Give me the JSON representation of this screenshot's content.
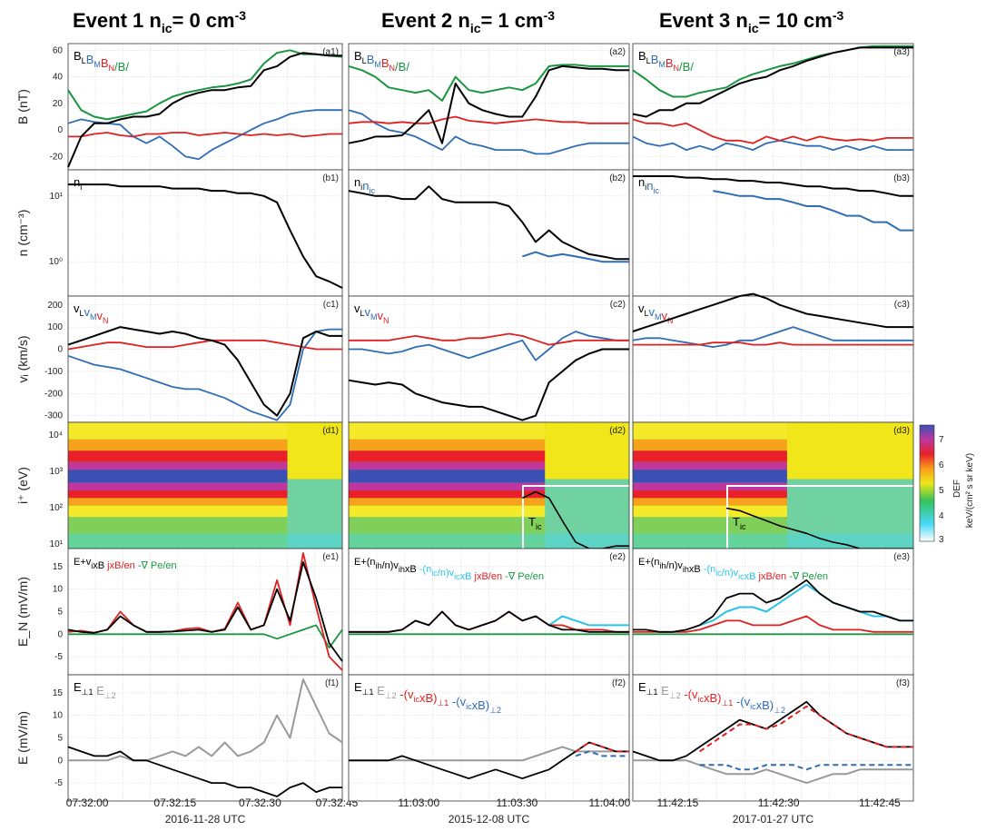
{
  "events": [
    {
      "title": "Event 1  n",
      "sub": "ic",
      "eq": "= 0 cm",
      "sup": "-3",
      "date_label": "2016-11-28 UTC",
      "xticks": [
        "07:32:00",
        "07:32:15",
        "07:32:30",
        "07:32:45"
      ]
    },
    {
      "title": "Event 2  n",
      "sub": "ic",
      "eq": "= 1 cm",
      "sup": "-3",
      "date_label": "2015-12-08 UTC",
      "xticks": [
        "11:03:00",
        "11:03:30",
        "11:04:00"
      ]
    },
    {
      "title": "Event 3  n",
      "sub": "ic",
      "eq": "= 10 cm",
      "sup": "-3",
      "date_label": "2017-01-27 UTC",
      "xticks": [
        "11:42:15",
        "11:42:30",
        "11:42:45"
      ]
    }
  ],
  "rows": [
    {
      "key": "a",
      "ylabel": "B (nT)",
      "yticks": [
        "60",
        "40",
        "20",
        "0",
        "-20"
      ]
    },
    {
      "key": "b",
      "ylabel": "n (cm⁻³)",
      "yticks": [
        "10¹",
        "10⁰"
      ]
    },
    {
      "key": "c",
      "ylabel": "vᵢ (km/s)",
      "yticks": [
        "200",
        "100",
        "0",
        "-100",
        "-200",
        "-300"
      ]
    },
    {
      "key": "d",
      "ylabel": "i⁺ (eV)",
      "yticks": [
        "10⁴",
        "10³",
        "10²",
        "10¹"
      ]
    },
    {
      "key": "e",
      "ylabel": "E_N (mV/m)",
      "yticks": [
        "15",
        "10",
        "5",
        "0",
        "-5"
      ]
    },
    {
      "key": "f",
      "ylabel": "E (mV/m)",
      "yticks": [
        "15",
        "10",
        "5",
        "0",
        "-5"
      ]
    }
  ],
  "panel_tags": [
    "(a1)",
    "(a2)",
    "(a3)",
    "(b1)",
    "(b2)",
    "(b3)",
    "(c1)",
    "(c2)",
    "(c3)",
    "(d1)",
    "(d2)",
    "(d3)",
    "(e1)",
    "(e2)",
    "(e3)",
    "(f1)",
    "(f2)",
    "(f3)"
  ],
  "legends": {
    "a": [
      {
        "t": "B",
        "s": "L",
        "c": "#000000"
      },
      {
        "t": "B",
        "s": "M",
        "c": "#2e6db4"
      },
      {
        "t": "B",
        "s": "N",
        "c": "#e02020"
      },
      {
        "t": "/B/",
        "s": "",
        "c": "#1a9641"
      }
    ],
    "b1": [
      {
        "t": "n",
        "s": "i",
        "c": "#000000"
      }
    ],
    "b23": [
      {
        "t": "n",
        "s": "i",
        "c": "#000000"
      },
      {
        "t": "n",
        "s": "ic",
        "c": "#2e6db4"
      }
    ],
    "c": [
      {
        "t": "v",
        "s": "L",
        "c": "#000000"
      },
      {
        "t": "v",
        "s": "M",
        "c": "#2e6db4"
      },
      {
        "t": "v",
        "s": "N",
        "c": "#e02020"
      }
    ],
    "e1": [
      {
        "t": "E+v",
        "s": "i",
        "c": "#000000"
      },
      {
        "t": "xB ",
        "s": "",
        "c": "#000000"
      },
      {
        "t": "jxB/en",
        "s": "",
        "c": "#e02020"
      },
      {
        "t": " -∇ Pe/en",
        "s": "",
        "c": "#1a9641"
      }
    ],
    "e23": [
      {
        "t": "E+(n",
        "s": "ih",
        "c": "#000000"
      },
      {
        "t": "/n)v",
        "s": "ih",
        "c": "#000000"
      },
      {
        "t": "xB ",
        "s": "",
        "c": "#000000"
      },
      {
        "t": "-(n",
        "s": "ic",
        "c": "#2bc3e8"
      },
      {
        "t": "/n)v",
        "s": "ic",
        "c": "#2bc3e8"
      },
      {
        "t": "xB ",
        "s": "",
        "c": "#2bc3e8"
      },
      {
        "t": "jxB/en",
        "s": "",
        "c": "#e02020"
      },
      {
        "t": " -∇ Pe/en",
        "s": "",
        "c": "#1a9641"
      }
    ],
    "f1": [
      {
        "t": "E",
        "s": "⊥1",
        "c": "#000000"
      },
      {
        "t": " E",
        "s": "⊥2",
        "c": "#999999"
      }
    ],
    "f23": [
      {
        "t": "E",
        "s": "⊥1",
        "c": "#000000"
      },
      {
        "t": " E",
        "s": "⊥2",
        "c": "#999999"
      },
      {
        "t": " -(v",
        "s": "ic",
        "c": "#e02020"
      },
      {
        "t": "xB)",
        "s": "⊥1",
        "c": "#e02020"
      },
      {
        "t": " -(v",
        "s": "ic",
        "c": "#2e6db4"
      },
      {
        "t": "xB)",
        "s": "⊥2",
        "c": "#2e6db4"
      }
    ]
  },
  "tic_label": "T",
  "tic_sub": "ic",
  "colorbar": {
    "ticks": [
      "7",
      "6",
      "5",
      "4",
      "3"
    ],
    "label": "DEF",
    "unit": "keV/(cm² s sr keV)"
  },
  "colors": {
    "L": "#000000",
    "M": "#2e6db4",
    "N": "#e02020",
    "B": "#1a9641",
    "cyan": "#2bc3e8",
    "gray": "#999999"
  },
  "chart_data": {
    "type": "line",
    "series_notes": "Approximate traces read from the figure",
    "a1": {
      "BL": [
        -28,
        -5,
        5,
        5,
        8,
        10,
        10,
        12,
        20,
        25,
        28,
        30,
        30,
        32,
        33,
        45,
        48,
        55,
        58,
        57,
        56,
        56
      ],
      "BM": [
        5,
        8,
        6,
        5,
        4,
        -5,
        -10,
        -5,
        -12,
        -20,
        -22,
        -15,
        -10,
        -5,
        0,
        5,
        8,
        12,
        14,
        15,
        15,
        15
      ],
      "BN": [
        -5,
        -5,
        -3,
        -2,
        -4,
        -5,
        -3,
        -3,
        -2,
        -2,
        -4,
        -3,
        -2,
        -3,
        -4,
        -3,
        -4,
        -3,
        -5,
        -4,
        -3,
        -3
      ],
      "Bt": [
        30,
        15,
        10,
        8,
        10,
        12,
        14,
        20,
        25,
        28,
        30,
        32,
        33,
        35,
        38,
        50,
        58,
        60,
        57,
        57,
        56,
        55
      ]
    },
    "a2": {
      "BL": [
        -10,
        -8,
        -5,
        -5,
        -4,
        5,
        15,
        -10,
        35,
        20,
        15,
        12,
        10,
        10,
        25,
        45,
        48,
        47,
        46,
        46,
        45,
        45
      ],
      "BM": [
        15,
        12,
        5,
        0,
        -2,
        -5,
        -10,
        -15,
        -5,
        -10,
        -12,
        -15,
        -15,
        -15,
        -18,
        -18,
        -15,
        -12,
        -10,
        -10,
        -10,
        -10
      ],
      "BN": [
        5,
        6,
        6,
        5,
        6,
        5,
        5,
        8,
        10,
        7,
        6,
        5,
        6,
        7,
        8,
        7,
        6,
        6,
        5,
        5,
        5,
        5
      ],
      "Bt": [
        48,
        45,
        40,
        32,
        30,
        28,
        30,
        22,
        40,
        30,
        28,
        30,
        32,
        30,
        35,
        48,
        49,
        49,
        48,
        48,
        48,
        48
      ]
    },
    "a3": {
      "BL": [
        12,
        10,
        15,
        15,
        20,
        20,
        25,
        30,
        35,
        38,
        40,
        45,
        48,
        52,
        55,
        58,
        60,
        62,
        62,
        62,
        62,
        62
      ],
      "BM": [
        -5,
        -10,
        -12,
        -10,
        -15,
        -12,
        -15,
        -10,
        -12,
        -15,
        -10,
        -8,
        -10,
        -12,
        -12,
        -15,
        -12,
        -15,
        -12,
        -15,
        -15,
        -15
      ],
      "BN": [
        8,
        5,
        5,
        3,
        5,
        0,
        -5,
        -8,
        -8,
        -10,
        -5,
        -8,
        -5,
        -8,
        -5,
        -7,
        -8,
        -7,
        -8,
        -6,
        -6,
        -6
      ],
      "Bt": [
        45,
        38,
        30,
        25,
        25,
        28,
        30,
        32,
        38,
        42,
        45,
        48,
        50,
        53,
        56,
        58,
        60,
        62,
        63,
        63,
        63,
        63
      ]
    },
    "b1": {
      "ni": [
        15,
        15,
        15,
        15,
        14,
        14,
        14,
        14,
        13,
        13,
        13,
        12,
        12,
        11,
        11,
        10,
        8,
        3,
        1.2,
        0.6,
        0.5,
        0.4
      ]
    },
    "b2": {
      "ni": [
        12,
        11,
        10,
        10,
        9,
        9,
        14,
        9,
        8,
        8,
        8,
        8,
        7,
        4,
        2,
        3,
        2,
        1.6,
        1.3,
        1.2,
        1.1,
        1.1
      ],
      "nic": [
        null,
        null,
        null,
        null,
        null,
        null,
        null,
        null,
        null,
        null,
        null,
        null,
        null,
        1.2,
        1.4,
        1.2,
        1.3,
        1.2,
        1.1,
        1.0,
        1.0,
        1.0
      ]
    },
    "b3": {
      "ni": [
        20,
        20,
        20,
        20,
        19,
        19,
        18,
        18,
        17,
        17,
        16,
        16,
        15,
        14,
        14,
        13,
        13,
        12,
        12,
        11,
        10,
        10
      ],
      "nic": [
        null,
        null,
        null,
        null,
        null,
        null,
        12,
        11,
        10,
        10,
        9,
        9,
        8,
        7,
        7,
        6,
        5,
        5,
        4,
        4,
        3,
        3
      ]
    },
    "c1": {
      "vL": [
        20,
        40,
        60,
        80,
        100,
        90,
        80,
        70,
        80,
        70,
        50,
        40,
        20,
        -50,
        -150,
        -250,
        -300,
        -200,
        50,
        80,
        60,
        60
      ],
      "vM": [
        -30,
        -50,
        -70,
        -80,
        -90,
        -110,
        -130,
        -150,
        -170,
        -180,
        -180,
        -200,
        -220,
        -250,
        -280,
        -300,
        -320,
        -250,
        0,
        80,
        90,
        90
      ],
      "vN": [
        0,
        10,
        20,
        30,
        30,
        20,
        10,
        10,
        10,
        20,
        30,
        40,
        40,
        40,
        40,
        40,
        30,
        20,
        10,
        0,
        0,
        0
      ]
    },
    "c2": {
      "vL": [
        -140,
        -150,
        -160,
        -150,
        -160,
        -200,
        -220,
        -240,
        -250,
        -260,
        -260,
        -280,
        -300,
        -320,
        -300,
        -150,
        -100,
        -50,
        -20,
        0,
        0,
        0
      ],
      "vM": [
        0,
        0,
        -10,
        -20,
        -10,
        10,
        20,
        0,
        -20,
        -40,
        -20,
        0,
        20,
        40,
        -50,
        0,
        50,
        80,
        60,
        50,
        40,
        40
      ],
      "vN": [
        40,
        40,
        40,
        40,
        50,
        60,
        50,
        40,
        40,
        50,
        50,
        60,
        70,
        60,
        40,
        20,
        30,
        40,
        40,
        40,
        40,
        40
      ],
      "vMic": [
        null,
        null,
        null,
        null,
        null,
        null,
        null,
        null,
        null,
        null,
        null,
        null,
        null,
        null,
        null,
        null,
        null,
        null,
        null,
        null,
        null,
        null
      ]
    },
    "c3": {
      "vL": [
        80,
        100,
        120,
        140,
        160,
        180,
        200,
        220,
        240,
        250,
        230,
        200,
        180,
        160,
        150,
        140,
        130,
        120,
        110,
        100,
        100,
        100
      ],
      "vM": [
        40,
        50,
        50,
        40,
        30,
        20,
        10,
        20,
        40,
        40,
        60,
        80,
        100,
        80,
        60,
        40,
        40,
        40,
        40,
        40,
        40,
        40
      ],
      "vN": [
        20,
        20,
        20,
        20,
        20,
        20,
        30,
        30,
        30,
        20,
        20,
        30,
        20,
        20,
        20,
        20,
        20,
        20,
        20,
        20,
        20,
        20
      ]
    },
    "e1": {
      "main": [
        1,
        0.5,
        0.3,
        1,
        4,
        2,
        0.5,
        0.5,
        0.6,
        0.8,
        1,
        0.5,
        1,
        6,
        1,
        2,
        10,
        3,
        16,
        8,
        -2,
        -6
      ],
      "jxB": [
        0.5,
        0.8,
        0.3,
        1,
        5,
        2,
        0.5,
        0.5,
        0.6,
        1.2,
        1.4,
        0.5,
        1.2,
        7,
        1,
        2,
        12,
        2,
        18,
        6,
        -5,
        -8
      ],
      "gradP": [
        0,
        0,
        0,
        0,
        0,
        0,
        0,
        0,
        0,
        0,
        0,
        0,
        0,
        0,
        0,
        0,
        -1,
        0,
        1,
        2,
        -3,
        1
      ]
    },
    "e2": {
      "main": [
        0.5,
        0.5,
        0.5,
        0.5,
        1,
        3,
        2,
        5,
        2,
        1,
        2,
        3,
        5,
        3,
        4,
        2,
        1,
        1,
        0.5,
        0.5,
        0.5,
        0.5
      ],
      "cyan": [
        null,
        null,
        null,
        null,
        null,
        null,
        null,
        null,
        null,
        null,
        null,
        null,
        null,
        null,
        null,
        2,
        4,
        3,
        2,
        2,
        2,
        2
      ],
      "jxB": [
        0.5,
        0.5,
        0.5,
        0.5,
        1,
        3,
        2,
        5,
        2,
        1,
        2,
        3,
        5,
        3,
        4,
        2,
        2,
        1,
        1,
        1,
        0.5,
        0.5
      ],
      "gradP": [
        0,
        0,
        0,
        0,
        0,
        0,
        0,
        0,
        0,
        0,
        0,
        0,
        0,
        0,
        0,
        0,
        0,
        0,
        0,
        0,
        0,
        0
      ]
    },
    "e3": {
      "main": [
        1,
        1,
        0.5,
        0.5,
        1,
        2,
        4,
        8,
        9,
        9,
        7,
        8,
        10,
        12,
        9,
        7,
        6,
        5,
        5,
        4,
        3,
        3
      ],
      "cyan": [
        null,
        null,
        null,
        null,
        null,
        2,
        3,
        5,
        6,
        6,
        5,
        7,
        9,
        11,
        9,
        7,
        6,
        5,
        4,
        4,
        3,
        3
      ],
      "jxB": [
        0.5,
        0.5,
        0.5,
        0.5,
        0.5,
        1,
        2,
        3,
        3,
        2,
        2,
        2,
        3,
        4,
        2,
        1,
        1,
        1,
        0.5,
        0.5,
        0.5,
        0.5
      ],
      "gradP": [
        0,
        0,
        0,
        0,
        0,
        0,
        0,
        0,
        0,
        0,
        0,
        0,
        0,
        0,
        0,
        0,
        0,
        0,
        0,
        0,
        0,
        0
      ]
    },
    "f1": {
      "Eperp1": [
        3,
        2,
        1,
        1,
        2,
        0,
        0,
        -1,
        -2,
        -3,
        -4,
        -5,
        -5,
        -6,
        -6,
        -7,
        -8,
        -6,
        -5,
        -7,
        -6,
        -6
      ],
      "Eperp2": [
        0,
        0,
        0,
        0,
        1,
        0,
        0,
        1,
        2,
        1,
        3,
        1,
        4,
        1,
        2,
        4,
        10,
        5,
        18,
        12,
        6,
        4
      ]
    },
    "f2": {
      "Eperp1": [
        0,
        0,
        0,
        0,
        1,
        0,
        -1,
        -2,
        -3,
        -4,
        -3,
        -2,
        -3,
        -4,
        -3,
        -2,
        0,
        2,
        4,
        3,
        2,
        2
      ],
      "Eperp2": [
        0,
        0,
        0,
        0,
        0,
        0,
        0,
        0,
        0,
        0,
        0,
        0,
        0,
        0,
        1,
        2,
        3,
        2,
        2,
        2,
        2,
        2
      ],
      "vic1": [
        null,
        null,
        null,
        null,
        null,
        null,
        null,
        null,
        null,
        null,
        null,
        null,
        null,
        null,
        null,
        null,
        null,
        2,
        4,
        3,
        2,
        2
      ],
      "vic2": [
        null,
        null,
        null,
        null,
        null,
        null,
        null,
        null,
        null,
        null,
        null,
        null,
        null,
        null,
        null,
        null,
        null,
        1,
        2,
        1,
        1,
        1
      ]
    },
    "f3": {
      "Eperp1": [
        2,
        1,
        0,
        0,
        1,
        3,
        5,
        7,
        9,
        8,
        7,
        9,
        11,
        13,
        10,
        8,
        6,
        5,
        4,
        3,
        3,
        3
      ],
      "Eperp2": [
        0,
        0,
        0,
        0,
        0,
        -1,
        -2,
        -3,
        -3,
        -3,
        -2,
        -3,
        -4,
        -5,
        -4,
        -3,
        -3,
        -2,
        -2,
        -2,
        -2,
        -2
      ],
      "vic1": [
        null,
        null,
        null,
        null,
        null,
        2,
        4,
        6,
        8,
        8,
        7,
        8,
        10,
        12,
        10,
        8,
        6,
        5,
        4,
        3,
        3,
        3
      ],
      "vic2": [
        null,
        null,
        null,
        null,
        null,
        -1,
        -1,
        -1,
        -2,
        -2,
        -1,
        -1,
        -1,
        -2,
        -1,
        -1,
        -1,
        -1,
        -1,
        -1,
        -1,
        -1
      ]
    }
  }
}
